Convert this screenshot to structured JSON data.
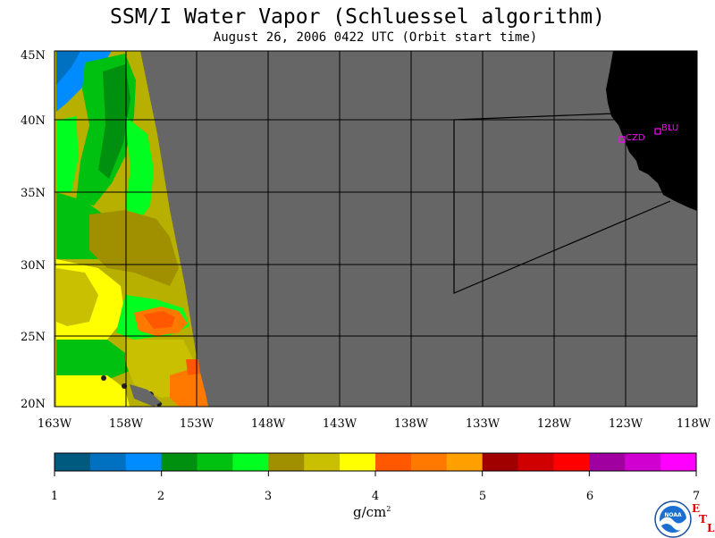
{
  "title": "SSM/I Water Vapor (Schluessel algorithm)",
  "subtitle": "August 26, 2006  0422 UTC  (Orbit start time)",
  "map": {
    "lat_labels": [
      "45N",
      "40N",
      "35N",
      "30N",
      "25N",
      "20N"
    ],
    "lon_labels": [
      "163W",
      "158W",
      "153W",
      "148W",
      "143W",
      "138W",
      "133W",
      "128W",
      "123W",
      "118W"
    ],
    "stations": [
      {
        "code": "CZD"
      },
      {
        "code": "BLU"
      }
    ],
    "colors": {
      "no_data": "#666666",
      "land": "#000000",
      "station": "#ff00ff"
    }
  },
  "colorbar": {
    "ticks": [
      "1",
      "2",
      "3",
      "4",
      "5",
      "6",
      "7"
    ],
    "units_base": "g/cm",
    "units_exp": "2",
    "colors": [
      "#005a80",
      "#0070c0",
      "#008cff",
      "#009010",
      "#00c010",
      "#00ff20",
      "#a09000",
      "#c8c000",
      "#ffff00",
      "#ff5800",
      "#ff7800",
      "#ffa000",
      "#a00000",
      "#d00000",
      "#ff0000",
      "#a000a0",
      "#d000d0",
      "#ff00ff"
    ]
  },
  "logos": {
    "noaa": "NOAA",
    "etl": [
      "E",
      "T",
      "L"
    ]
  }
}
